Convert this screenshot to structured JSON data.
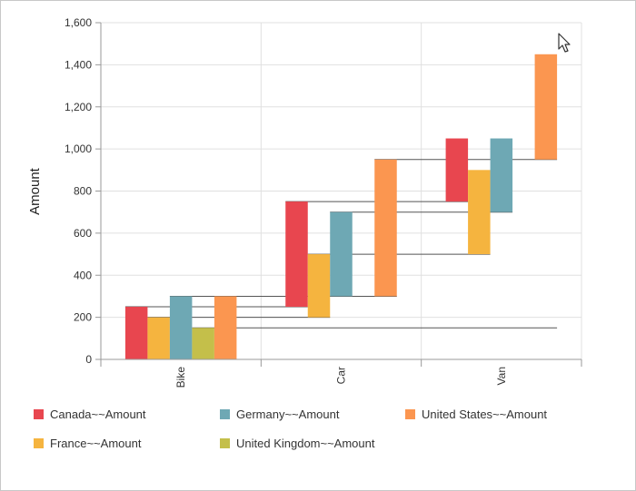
{
  "chart_data": {
    "type": "bar",
    "subtype": "stacked-waterfall",
    "title": "",
    "xlabel": "",
    "ylabel": "Amount",
    "categories": [
      "Bike",
      "Car",
      "Van"
    ],
    "ylim": [
      0,
      1600
    ],
    "yticks": [
      0,
      200,
      400,
      600,
      800,
      1000,
      1200,
      1400,
      1600
    ],
    "ytick_labels": [
      "0",
      "200",
      "400",
      "600",
      "800",
      "1,000",
      "1,200",
      "1,400",
      "1,600"
    ],
    "grid": true,
    "legend_position": "bottom",
    "series": [
      {
        "name": "Canada~~Amount",
        "color": "#e8464f",
        "bars": [
          {
            "category": "Bike",
            "low": 0,
            "high": 250
          },
          {
            "category": "Car",
            "low": 250,
            "high": 750
          },
          {
            "category": "Van",
            "low": 750,
            "high": 1050
          }
        ]
      },
      {
        "name": "France~~Amount",
        "color": "#f5b43f",
        "bars": [
          {
            "category": "Bike",
            "low": 0,
            "high": 200
          },
          {
            "category": "Car",
            "low": 200,
            "high": 500
          },
          {
            "category": "Van",
            "low": 500,
            "high": 900
          }
        ]
      },
      {
        "name": "Germany~~Amount",
        "color": "#6ea8b4",
        "bars": [
          {
            "category": "Bike",
            "low": 0,
            "high": 300
          },
          {
            "category": "Car",
            "low": 300,
            "high": 700
          },
          {
            "category": "Van",
            "low": 700,
            "high": 1050
          }
        ]
      },
      {
        "name": "United Kingdom~~Amount",
        "color": "#c4bf4a",
        "bars": [
          {
            "category": "Bike",
            "low": 0,
            "high": 150
          }
        ]
      },
      {
        "name": "United States~~Amount",
        "color": "#fb9650",
        "bars": [
          {
            "category": "Bike",
            "low": 0,
            "high": 300
          },
          {
            "category": "Car",
            "low": 300,
            "high": 950
          },
          {
            "category": "Van",
            "low": 950,
            "high": 1450
          }
        ]
      }
    ]
  },
  "legend": {
    "items": [
      {
        "label": "Canada~~Amount",
        "color": "#e8464f"
      },
      {
        "label": "Germany~~Amount",
        "color": "#6ea8b4"
      },
      {
        "label": "United States~~Amount",
        "color": "#fb9650"
      },
      {
        "label": "France~~Amount",
        "color": "#f5b43f"
      },
      {
        "label": "United Kingdom~~Amount",
        "color": "#c4bf4a"
      }
    ]
  }
}
